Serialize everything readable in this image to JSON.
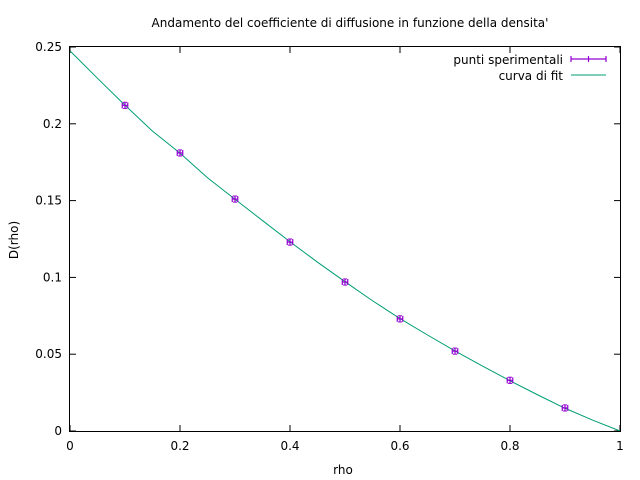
{
  "chart_data": {
    "type": "scatter",
    "title": "Andamento del coefficiente di diffusione in funzione della densita'",
    "xlabel": "rho",
    "ylabel": "D(rho)",
    "xlim": [
      0,
      1
    ],
    "ylim": [
      0,
      0.25
    ],
    "x_ticks": [
      "0",
      "0.2",
      "0.4",
      "0.6",
      "0.8",
      "1"
    ],
    "y_ticks": [
      "0",
      "0.05",
      "0.1",
      "0.15",
      "0.2",
      "0.25"
    ],
    "grid": false,
    "legend_position": "top-right",
    "series": [
      {
        "name": "punti sperimentali",
        "kind": "points-with-errorbars",
        "color": "#9400d3",
        "x": [
          0.1,
          0.2,
          0.3,
          0.4,
          0.5,
          0.6,
          0.7,
          0.8,
          0.9
        ],
        "y": [
          0.212,
          0.181,
          0.151,
          0.123,
          0.097,
          0.073,
          0.052,
          0.033,
          0.015
        ],
        "xerr": [
          0.005,
          0.005,
          0.005,
          0.005,
          0.005,
          0.005,
          0.005,
          0.005,
          0.005
        ],
        "yerr": [
          0.002,
          0.002,
          0.002,
          0.002,
          0.002,
          0.002,
          0.002,
          0.002,
          0.002
        ]
      },
      {
        "name": "curva di fit",
        "kind": "line",
        "color": "#009e73",
        "x": [
          0,
          0.05,
          0.1,
          0.15,
          0.2,
          0.25,
          0.3,
          0.35,
          0.4,
          0.45,
          0.5,
          0.55,
          0.6,
          0.65,
          0.7,
          0.75,
          0.8,
          0.85,
          0.9,
          0.95,
          1.0
        ],
        "y": [
          0.2475,
          0.2296,
          0.2121,
          0.1952,
          0.1809,
          0.1649,
          0.1509,
          0.137,
          0.1232,
          0.1099,
          0.0972,
          0.0848,
          0.0732,
          0.0625,
          0.0521,
          0.0423,
          0.0327,
          0.0236,
          0.0148,
          0.0071,
          0.0
        ]
      }
    ]
  }
}
